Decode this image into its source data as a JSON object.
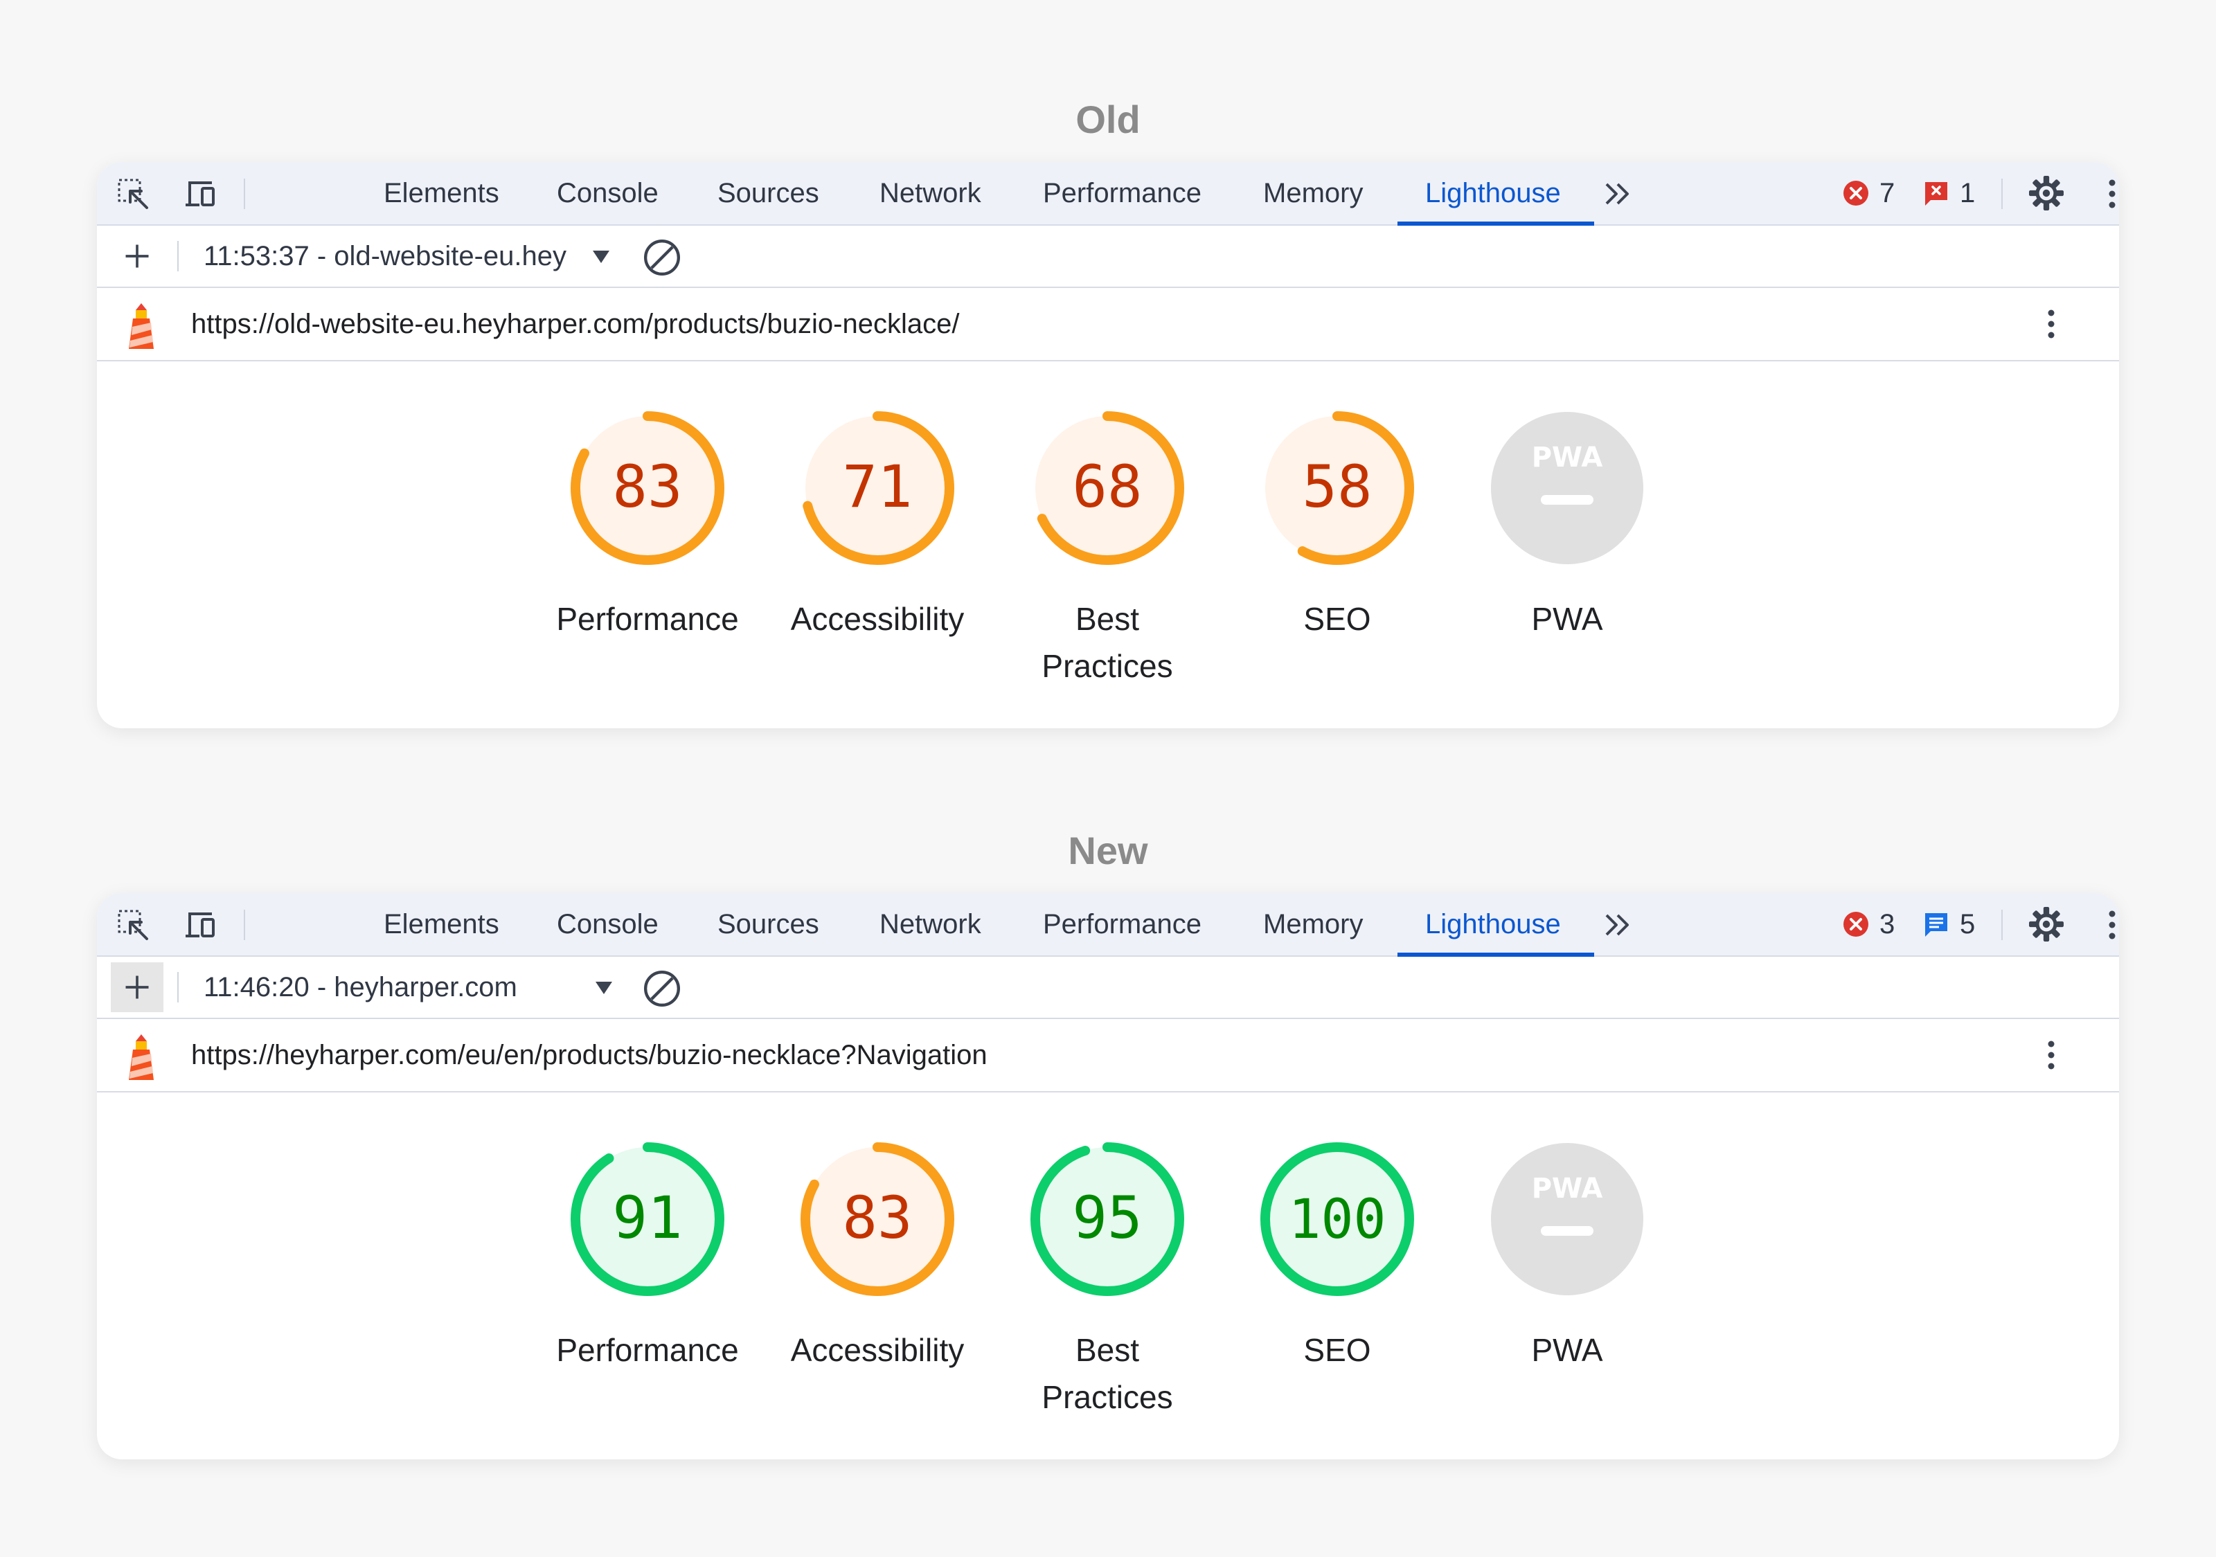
{
  "panels": [
    {
      "section_title": "Old",
      "tabs": [
        "Elements",
        "Console",
        "Sources",
        "Network",
        "Performance",
        "Memory",
        "Lighthouse"
      ],
      "active_tab": "Lighthouse",
      "error_count": "7",
      "second_badge_count": "1",
      "second_badge_kind": "issue-flag-red",
      "report_select": "11:53:37 - old-website-eu.hey",
      "url": "https://old-website-eu.heyharper.com/products/buzio-necklace/",
      "scores": [
        {
          "label": "Performance",
          "value": 83
        },
        {
          "label": "Accessibility",
          "value": 71
        },
        {
          "label": "Best Practices",
          "value": 68
        },
        {
          "label": "SEO",
          "value": 58
        },
        {
          "label": "PWA",
          "value": null,
          "badge_text": "PWA"
        }
      ]
    },
    {
      "section_title": "New",
      "tabs": [
        "Elements",
        "Console",
        "Sources",
        "Network",
        "Performance",
        "Memory",
        "Lighthouse"
      ],
      "active_tab": "Lighthouse",
      "error_count": "3",
      "second_badge_count": "5",
      "second_badge_kind": "message-blue",
      "report_select": "11:46:20 - heyharper.com",
      "url": "https://heyharper.com/eu/en/products/buzio-necklace?Navigation",
      "scores": [
        {
          "label": "Performance",
          "value": 91
        },
        {
          "label": "Accessibility",
          "value": 83
        },
        {
          "label": "Best Practices",
          "value": 95
        },
        {
          "label": "SEO",
          "value": 100
        },
        {
          "label": "PWA",
          "value": null,
          "badge_text": "PWA"
        }
      ]
    }
  ],
  "colors": {
    "average_ring": "#fa9f1b",
    "average_fill": "#fff3ea",
    "average_text": "#c33300",
    "pass_ring": "#0cce6b",
    "pass_fill": "#e6faef",
    "pass_text": "#008800",
    "na_fill": "#e0e0e0",
    "active_tab": "#0b57d0"
  },
  "icons": [
    "inspect-element-icon",
    "device-toolbar-icon",
    "more-tabs-icon",
    "error-icon",
    "issue-icon",
    "message-icon",
    "settings-gear-icon",
    "kebab-menu-icon",
    "close-icon",
    "plus-icon",
    "dropdown-arrow-icon",
    "clear-icon",
    "lighthouse-logo-icon"
  ]
}
